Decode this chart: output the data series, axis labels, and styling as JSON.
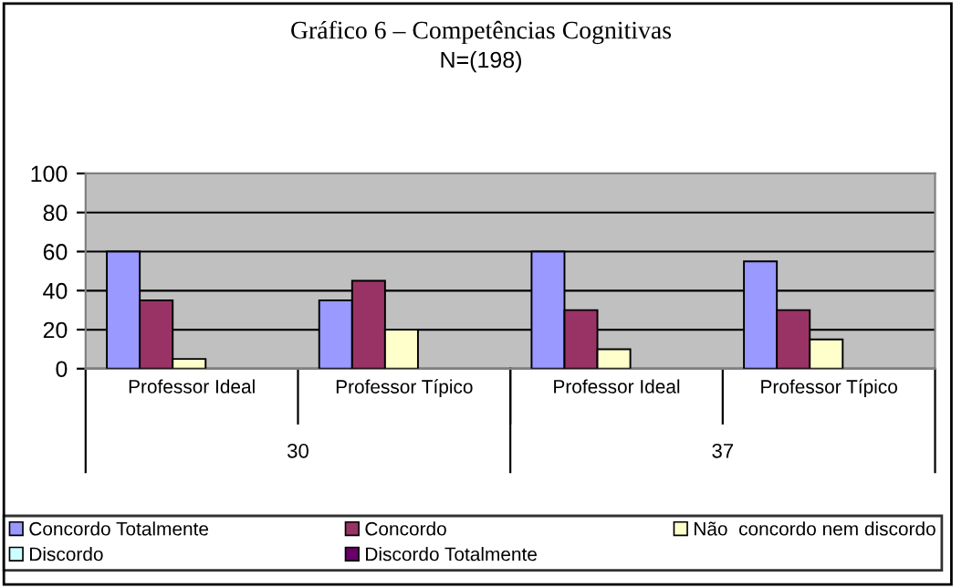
{
  "chart_data": {
    "type": "bar",
    "title": "Gráfico 6 – Competências Cognitivas",
    "subtitle": "N=(198)",
    "categories": [
      "Professor Ideal",
      "Professor Típico",
      "Professor Ideal",
      "Professor Típico"
    ],
    "annotations": [
      "30",
      "37"
    ],
    "series": [
      {
        "name": "Concordo Totalmente",
        "color": "#9999ff",
        "values": [
          60,
          35,
          60,
          55
        ]
      },
      {
        "name": "Concordo",
        "color": "#993366",
        "values": [
          35,
          45,
          30,
          30
        ]
      },
      {
        "name": "Não  concordo nem discordo",
        "color": "#ffffcc",
        "values": [
          5,
          20,
          10,
          15
        ]
      },
      {
        "name": "Discordo",
        "color": "#ccffff",
        "values": [
          0,
          0,
          0,
          0
        ]
      },
      {
        "name": "Discordo Totalmente",
        "color": "#660066",
        "values": [
          0,
          0,
          0,
          0
        ]
      }
    ],
    "ylim": [
      0,
      100
    ],
    "yticks": [
      0,
      20,
      40,
      60,
      80,
      100
    ],
    "grid": "y",
    "legend": "bottom"
  }
}
